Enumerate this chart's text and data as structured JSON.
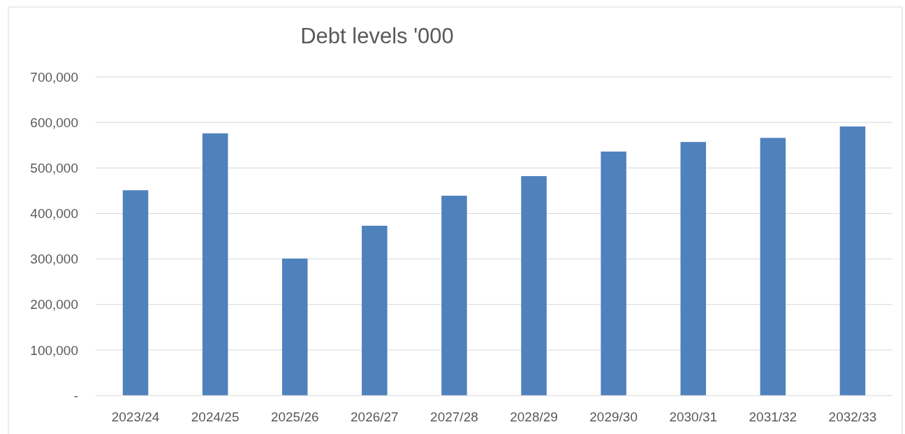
{
  "chart_data": {
    "type": "bar",
    "title": "Debt levels '000",
    "categories": [
      "2023/24",
      "2024/25",
      "2025/26",
      "2026/27",
      "2027/28",
      "2028/29",
      "2029/30",
      "2030/31",
      "2031/32",
      "2032/33"
    ],
    "values": [
      451000,
      576000,
      301000,
      373000,
      439000,
      482000,
      536000,
      557000,
      566000,
      591000
    ],
    "color": "#4f81bd",
    "ylim": [
      0,
      700000
    ],
    "yticks": [
      {
        "value": 0,
        "label": "-"
      },
      {
        "value": 100000,
        "label": "100,000"
      },
      {
        "value": 200000,
        "label": "200,000"
      },
      {
        "value": 300000,
        "label": "300,000"
      },
      {
        "value": 400000,
        "label": "400,000"
      },
      {
        "value": 500000,
        "label": "500,000"
      },
      {
        "value": 600000,
        "label": "600,000"
      },
      {
        "value": 700000,
        "label": "700,000"
      }
    ],
    "grid": "y"
  }
}
